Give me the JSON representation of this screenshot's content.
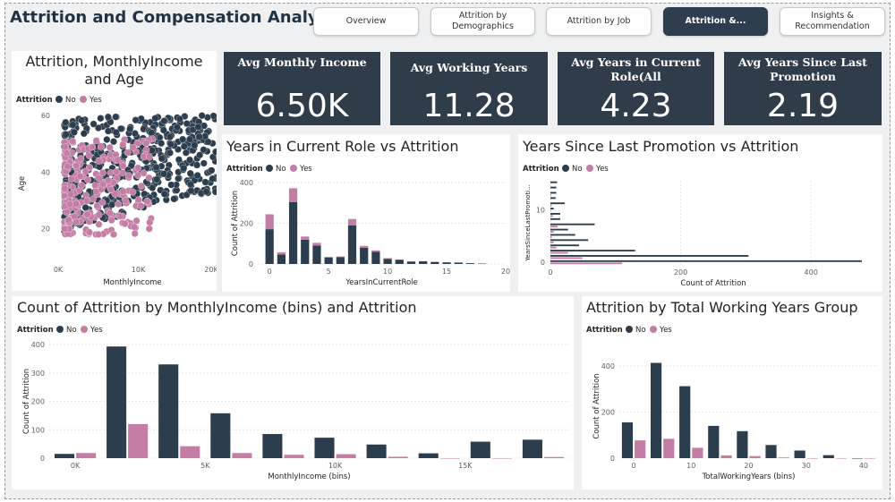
{
  "app": {
    "title": "Attrition and Compensation Analysis"
  },
  "nav": [
    {
      "label": "Overview",
      "active": false
    },
    {
      "label": "Attrition by Demographics",
      "active": false
    },
    {
      "label": "Attrition by Job",
      "active": false
    },
    {
      "label": "Attrition &...",
      "active": true
    },
    {
      "label": "Insights & Recommendation",
      "active": false
    }
  ],
  "legend": {
    "title": "Attrition",
    "no": "No",
    "yes": "Yes"
  },
  "colors": {
    "no": "#2c3e4e",
    "yes": "#c47ea5",
    "kpi_bg": "#2f3d4b",
    "nav_active": "#2e3e4e"
  },
  "kpis": [
    {
      "label": "Avg Monthly Income",
      "value": "6.50K"
    },
    {
      "label": "Avg Working Years",
      "value": "11.28"
    },
    {
      "label": "Avg Years in Current Role(All",
      "value": "4.23"
    },
    {
      "label": "Avg Years Since Last Promotion",
      "value": "2.19"
    }
  ],
  "chart_data": [
    {
      "id": "scatter",
      "type": "scatter",
      "title": "Attrition, MonthlyIncome and Age",
      "xlabel": "MonthlyIncome",
      "ylabel": "Age",
      "xlim": [
        0,
        20000
      ],
      "ylim": [
        18,
        60
      ],
      "x_ticks": [
        "0K",
        "10K",
        "20K"
      ],
      "y_ticks": [
        "20",
        "40",
        "60"
      ],
      "series": [
        {
          "name": "No",
          "description": "dense cloud of points across income 1K-20K, age 18-60"
        },
        {
          "name": "Yes",
          "description": "concentrated at low income 1K-10K, age 18-45"
        }
      ]
    },
    {
      "id": "role",
      "type": "bar",
      "title": "Years in Current Role vs Attrition",
      "xlabel": "YearsInCurrentRole",
      "ylabel": "Count of Attrition",
      "xlim": [
        -1,
        20
      ],
      "ylim": [
        0,
        400
      ],
      "x_ticks": [
        "0",
        "5",
        "10",
        "15",
        "20"
      ],
      "y_ticks": [
        "0",
        "200",
        "400"
      ],
      "stacked": true,
      "x": [
        0,
        1,
        2,
        3,
        4,
        5,
        6,
        7,
        8,
        9,
        10,
        11,
        12,
        13,
        14,
        15,
        16,
        17,
        18
      ],
      "series": [
        {
          "name": "No",
          "values": [
            171,
            46,
            304,
            119,
            90,
            32,
            33,
            190,
            80,
            60,
            25,
            20,
            12,
            13,
            10,
            8,
            7,
            4,
            2
          ]
        },
        {
          "name": "Yes",
          "values": [
            73,
            11,
            68,
            16,
            14,
            3,
            4,
            31,
            9,
            7,
            4,
            2,
            1,
            1,
            1,
            0,
            0,
            0,
            0
          ]
        }
      ]
    },
    {
      "id": "promo",
      "type": "bar",
      "title": "Years Since Last Promotion vs Attrition",
      "xlabel": "Count of Attrition",
      "ylabel": "YearsSinceLastPromoti...",
      "orientation": "horizontal",
      "xlim": [
        0,
        500
      ],
      "ylim": [
        -0.5,
        15.5
      ],
      "x_ticks": [
        "0",
        "200",
        "400"
      ],
      "y_ticks": [
        "0",
        "10"
      ],
      "y": [
        0,
        1,
        2,
        3,
        4,
        5,
        6,
        7,
        8,
        9,
        10,
        11,
        12,
        13,
        14,
        15
      ],
      "series": [
        {
          "name": "No",
          "values": [
            478,
            304,
            130,
            44,
            58,
            38,
            27,
            68,
            15,
            15,
            5,
            22,
            8,
            9,
            9,
            10
          ]
        },
        {
          "name": "Yes",
          "values": [
            110,
            49,
            27,
            9,
            5,
            2,
            5,
            11,
            0,
            4,
            1,
            2,
            0,
            1,
            0,
            0
          ]
        }
      ]
    },
    {
      "id": "income",
      "type": "bar",
      "title": "Count of Attrition by MonthlyIncome (bins) and Attrition",
      "xlabel": "MonthlyIncome (bins)",
      "ylabel": "Count of Attrition",
      "xlim": [
        -0.5,
        9.5
      ],
      "ylim": [
        0,
        400
      ],
      "x_ticks": [
        "0K",
        "5K",
        "10K",
        "15K"
      ],
      "y_ticks": [
        "0",
        "100",
        "200",
        "300",
        "400"
      ],
      "x": [
        0,
        1,
        2,
        3,
        4,
        5,
        6,
        7,
        8,
        9
      ],
      "series": [
        {
          "name": "No",
          "values": [
            15,
            393,
            330,
            158,
            85,
            72,
            48,
            17,
            58,
            65
          ]
        },
        {
          "name": "Yes",
          "values": [
            18,
            120,
            42,
            18,
            12,
            14,
            5,
            0,
            0,
            4
          ]
        }
      ]
    },
    {
      "id": "working",
      "type": "bar",
      "title": "Attrition by Total Working Years Group",
      "xlabel": "TotalWorkingYears (bins)",
      "ylabel": "Count of Attrition",
      "xlim": [
        -2.5,
        42.5
      ],
      "ylim": [
        0,
        450
      ],
      "x_ticks": [
        "0",
        "10",
        "20",
        "30",
        "40"
      ],
      "y_ticks": [
        "0",
        "200",
        "400"
      ],
      "x": [
        0,
        5,
        10,
        15,
        20,
        25,
        30,
        35,
        40
      ],
      "series": [
        {
          "name": "No",
          "values": [
            155,
            413,
            312,
            140,
            117,
            57,
            33,
            13,
            0
          ]
        },
        {
          "name": "Yes",
          "values": [
            77,
            84,
            45,
            12,
            9,
            3,
            0,
            0,
            0
          ]
        }
      ]
    }
  ]
}
